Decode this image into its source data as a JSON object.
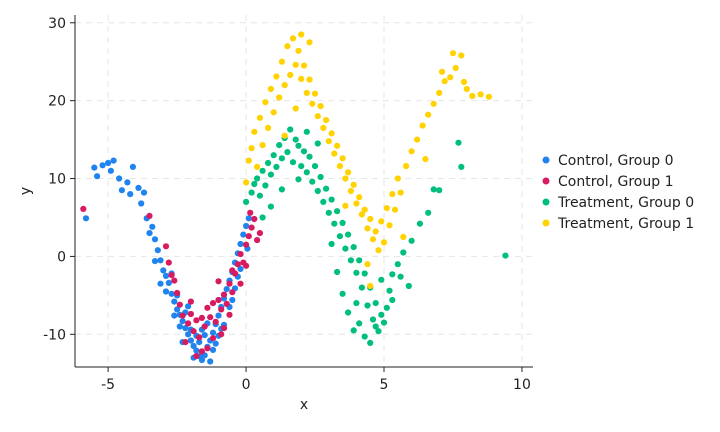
{
  "chart_data": {
    "type": "scatter",
    "xlabel": "x",
    "ylabel": "y",
    "xlim": [
      -6.2,
      10.4
    ],
    "ylim": [
      -14.2,
      31
    ],
    "xticks": [
      -5,
      0,
      5,
      10
    ],
    "yticks": [
      -10,
      0,
      10,
      20,
      30
    ],
    "grid": true,
    "legend_position": "right",
    "series": [
      {
        "name": "Control, Group 0",
        "color": "#1f83f0",
        "points": [
          [
            -5.8,
            4.9
          ],
          [
            -5.4,
            10.3
          ],
          [
            -5.5,
            11.4
          ],
          [
            -5.2,
            11.7
          ],
          [
            -5.0,
            12.0
          ],
          [
            -4.8,
            12.3
          ],
          [
            -4.9,
            11.0
          ],
          [
            -4.6,
            10.0
          ],
          [
            -4.5,
            8.5
          ],
          [
            -4.3,
            9.5
          ],
          [
            -4.1,
            11.5
          ],
          [
            -4.2,
            8.0
          ],
          [
            -3.9,
            8.8
          ],
          [
            -3.8,
            6.8
          ],
          [
            -3.7,
            8.2
          ],
          [
            -3.6,
            4.9
          ],
          [
            -3.4,
            3.8
          ],
          [
            -3.5,
            3.0
          ],
          [
            -3.3,
            2.2
          ],
          [
            -3.2,
            0.8
          ],
          [
            -3.1,
            -0.5
          ],
          [
            -3.0,
            -1.8
          ],
          [
            -2.9,
            -2.5
          ],
          [
            -2.8,
            -3.4
          ],
          [
            -2.7,
            -4.8
          ],
          [
            -2.6,
            -5.8
          ],
          [
            -2.5,
            -6.8
          ],
          [
            -2.4,
            -7.5
          ],
          [
            -2.3,
            -8.3
          ],
          [
            -2.2,
            -9.2
          ],
          [
            -2.1,
            -10.0
          ],
          [
            -2.0,
            -10.8
          ],
          [
            -1.9,
            -11.5
          ],
          [
            -1.8,
            -12.1
          ],
          [
            -1.7,
            -12.8
          ],
          [
            -1.6,
            -13.3
          ],
          [
            -1.5,
            -12.7
          ],
          [
            -1.4,
            -11.6
          ],
          [
            -1.3,
            -10.8
          ],
          [
            -1.2,
            -9.8
          ],
          [
            -1.1,
            -8.7
          ],
          [
            -1.0,
            -7.6
          ],
          [
            -0.9,
            -6.5
          ],
          [
            -0.8,
            -5.4
          ],
          [
            -0.7,
            -4.2
          ],
          [
            -0.6,
            -3.1
          ],
          [
            -0.5,
            -2.0
          ],
          [
            -0.4,
            -0.8
          ],
          [
            -0.3,
            0.4
          ],
          [
            -0.2,
            1.6
          ],
          [
            -0.1,
            2.8
          ],
          [
            0.0,
            3.9
          ],
          [
            0.1,
            4.9
          ],
          [
            -2.6,
            -7.6
          ],
          [
            -2.4,
            -9.0
          ],
          [
            -2.2,
            -7.2
          ],
          [
            -2.0,
            -9.4
          ],
          [
            -1.8,
            -10.2
          ],
          [
            -1.6,
            -9.4
          ],
          [
            -1.4,
            -8.6
          ],
          [
            -1.2,
            -12.0
          ],
          [
            -1.0,
            -10.2
          ],
          [
            -0.8,
            -8.8
          ],
          [
            -0.6,
            -6.5
          ],
          [
            -0.4,
            -4.1
          ],
          [
            -0.2,
            -1.6
          ],
          [
            -2.9,
            -4.5
          ],
          [
            -3.1,
            -3.5
          ],
          [
            -2.5,
            -5.0
          ],
          [
            -2.3,
            -11.0
          ],
          [
            -1.7,
            -11.0
          ],
          [
            -1.5,
            -10.1
          ],
          [
            -1.1,
            -11.2
          ],
          [
            -0.9,
            -9.3
          ],
          [
            -0.5,
            -5.6
          ],
          [
            -0.3,
            -2.6
          ],
          [
            0.05,
            1.0
          ],
          [
            -3.3,
            -0.6
          ],
          [
            -2.7,
            -2.2
          ],
          [
            -2.1,
            -6.4
          ],
          [
            -1.9,
            -13.0
          ],
          [
            -1.3,
            -13.5
          ]
        ]
      },
      {
        "name": "Control, Group 1",
        "color": "#d81b60",
        "points": [
          [
            -5.9,
            6.1
          ],
          [
            -3.5,
            5.2
          ],
          [
            -2.9,
            1.3
          ],
          [
            -2.7,
            -2.4
          ],
          [
            -2.5,
            -4.7
          ],
          [
            -2.4,
            -6.2
          ],
          [
            -2.3,
            -7.6
          ],
          [
            -2.1,
            -8.6
          ],
          [
            -2.0,
            -7.4
          ],
          [
            -1.9,
            -9.6
          ],
          [
            -1.8,
            -8.2
          ],
          [
            -1.7,
            -10.4
          ],
          [
            -1.6,
            -7.9
          ],
          [
            -1.5,
            -9.0
          ],
          [
            -1.4,
            -11.8
          ],
          [
            -1.3,
            -7.8
          ],
          [
            -1.2,
            -6.0
          ],
          [
            -1.1,
            -8.4
          ],
          [
            -1.0,
            -5.6
          ],
          [
            -0.9,
            -6.8
          ],
          [
            -0.8,
            -4.9
          ],
          [
            -0.7,
            -6.1
          ],
          [
            -0.6,
            -3.5
          ],
          [
            -0.5,
            -4.6
          ],
          [
            -0.4,
            -2.2
          ],
          [
            -0.3,
            -1.0
          ],
          [
            -0.2,
            0.3
          ],
          [
            -0.1,
            -0.8
          ],
          [
            0.0,
            1.5
          ],
          [
            0.1,
            2.6
          ],
          [
            0.2,
            3.7
          ],
          [
            0.3,
            4.8
          ],
          [
            0.4,
            2.1
          ],
          [
            0.5,
            3.0
          ],
          [
            0.15,
            5.6
          ],
          [
            -2.2,
            -11.0
          ],
          [
            -1.6,
            -12.2
          ],
          [
            -1.2,
            -10.5
          ],
          [
            -0.8,
            -9.2
          ],
          [
            -0.6,
            -7.5
          ],
          [
            -0.2,
            -3.5
          ],
          [
            0.0,
            -1.2
          ],
          [
            -2.6,
            -3.1
          ],
          [
            -2.0,
            -5.8
          ],
          [
            -1.4,
            -6.6
          ],
          [
            -1.0,
            -3.2
          ],
          [
            -0.5,
            -1.8
          ],
          [
            -0.9,
            -10.0
          ],
          [
            -1.8,
            -12.8
          ],
          [
            -2.8,
            -0.8
          ]
        ]
      },
      {
        "name": "Treatment, Group 0",
        "color": "#00bf7d",
        "points": [
          [
            0.0,
            7.0
          ],
          [
            0.2,
            8.2
          ],
          [
            0.3,
            9.3
          ],
          [
            0.4,
            10.0
          ],
          [
            0.5,
            7.8
          ],
          [
            0.6,
            11.0
          ],
          [
            0.7,
            9.1
          ],
          [
            0.8,
            12.0
          ],
          [
            0.9,
            10.5
          ],
          [
            1.0,
            13.0
          ],
          [
            1.1,
            11.5
          ],
          [
            1.2,
            14.3
          ],
          [
            1.3,
            12.6
          ],
          [
            1.4,
            15.2
          ],
          [
            1.5,
            13.4
          ],
          [
            1.6,
            16.3
          ],
          [
            1.7,
            12.1
          ],
          [
            1.8,
            15.0
          ],
          [
            1.9,
            14.2
          ],
          [
            2.0,
            11.6
          ],
          [
            2.1,
            13.5
          ],
          [
            2.2,
            10.8
          ],
          [
            2.3,
            12.8
          ],
          [
            2.4,
            9.6
          ],
          [
            2.5,
            11.6
          ],
          [
            2.6,
            8.4
          ],
          [
            2.7,
            10.2
          ],
          [
            2.8,
            7.0
          ],
          [
            2.9,
            8.7
          ],
          [
            3.0,
            5.6
          ],
          [
            3.1,
            7.3
          ],
          [
            3.2,
            4.2
          ],
          [
            3.3,
            5.8
          ],
          [
            3.4,
            2.6
          ],
          [
            3.5,
            4.3
          ],
          [
            3.6,
            1.0
          ],
          [
            3.7,
            2.8
          ],
          [
            3.8,
            -0.5
          ],
          [
            3.9,
            1.2
          ],
          [
            4.0,
            -2.1
          ],
          [
            4.1,
            -0.5
          ],
          [
            4.2,
            -4.0
          ],
          [
            4.3,
            -2.2
          ],
          [
            4.4,
            -6.3
          ],
          [
            4.5,
            -4.0
          ],
          [
            4.6,
            -8.1
          ],
          [
            4.7,
            -6.0
          ],
          [
            4.8,
            -9.6
          ],
          [
            4.9,
            -7.5
          ],
          [
            5.0,
            -8.5
          ],
          [
            5.1,
            -6.6
          ],
          [
            5.2,
            -4.4
          ],
          [
            5.3,
            -2.3
          ],
          [
            5.5,
            -1.0
          ],
          [
            5.7,
            0.5
          ],
          [
            6.0,
            2.0
          ],
          [
            6.3,
            4.2
          ],
          [
            6.6,
            5.6
          ],
          [
            6.8,
            8.6
          ],
          [
            7.0,
            8.5
          ],
          [
            7.7,
            14.6
          ],
          [
            7.8,
            11.5
          ],
          [
            9.4,
            0.1
          ],
          [
            3.9,
            -9.5
          ],
          [
            4.1,
            -8.6
          ],
          [
            4.3,
            -10.3
          ],
          [
            4.5,
            -11.1
          ],
          [
            4.7,
            -9.0
          ],
          [
            3.7,
            -7.2
          ],
          [
            3.5,
            -4.8
          ],
          [
            3.3,
            -2.0
          ],
          [
            4.9,
            -3.0
          ],
          [
            5.3,
            -5.6
          ],
          [
            5.6,
            -2.6
          ],
          [
            0.9,
            6.4
          ],
          [
            1.3,
            8.6
          ],
          [
            1.9,
            9.9
          ],
          [
            2.2,
            16.0
          ],
          [
            2.6,
            14.5
          ],
          [
            0.6,
            5.0
          ],
          [
            3.1,
            1.6
          ],
          [
            4.0,
            -6.0
          ],
          [
            5.9,
            -3.8
          ]
        ]
      },
      {
        "name": "Treatment, Group 1",
        "color": "#ffd200",
        "points": [
          [
            0.1,
            12.3
          ],
          [
            0.3,
            16.0
          ],
          [
            0.5,
            17.8
          ],
          [
            0.6,
            14.3
          ],
          [
            0.7,
            19.8
          ],
          [
            0.8,
            16.5
          ],
          [
            0.9,
            21.5
          ],
          [
            1.0,
            18.5
          ],
          [
            1.1,
            23.1
          ],
          [
            1.2,
            20.4
          ],
          [
            1.3,
            25.0
          ],
          [
            1.4,
            22.0
          ],
          [
            1.5,
            27.0
          ],
          [
            1.6,
            23.3
          ],
          [
            1.7,
            28.0
          ],
          [
            1.8,
            24.6
          ],
          [
            1.9,
            26.4
          ],
          [
            2.0,
            22.8
          ],
          [
            2.1,
            24.5
          ],
          [
            2.2,
            21.0
          ],
          [
            2.3,
            22.7
          ],
          [
            2.4,
            19.6
          ],
          [
            2.5,
            20.9
          ],
          [
            2.6,
            18.0
          ],
          [
            2.7,
            19.3
          ],
          [
            2.8,
            16.5
          ],
          [
            2.9,
            17.5
          ],
          [
            3.0,
            14.8
          ],
          [
            3.1,
            15.8
          ],
          [
            3.2,
            13.2
          ],
          [
            3.3,
            14.2
          ],
          [
            3.4,
            11.6
          ],
          [
            3.5,
            12.6
          ],
          [
            3.6,
            10.0
          ],
          [
            3.7,
            10.8
          ],
          [
            3.8,
            8.4
          ],
          [
            3.9,
            9.2
          ],
          [
            4.0,
            6.8
          ],
          [
            4.1,
            7.6
          ],
          [
            4.2,
            5.4
          ],
          [
            4.3,
            6.0
          ],
          [
            4.4,
            3.6
          ],
          [
            4.5,
            4.8
          ],
          [
            4.6,
            2.2
          ],
          [
            4.7,
            3.2
          ],
          [
            4.8,
            0.8
          ],
          [
            4.9,
            4.5
          ],
          [
            5.0,
            1.8
          ],
          [
            5.1,
            6.2
          ],
          [
            5.2,
            4.0
          ],
          [
            5.3,
            8.0
          ],
          [
            5.4,
            6.0
          ],
          [
            5.5,
            10.0
          ],
          [
            5.6,
            8.2
          ],
          [
            5.8,
            11.6
          ],
          [
            6.0,
            13.5
          ],
          [
            6.2,
            15.0
          ],
          [
            6.4,
            16.8
          ],
          [
            6.6,
            18.2
          ],
          [
            6.8,
            19.6
          ],
          [
            7.0,
            21.0
          ],
          [
            7.2,
            22.5
          ],
          [
            7.4,
            23.0
          ],
          [
            7.6,
            24.2
          ],
          [
            7.8,
            25.8
          ],
          [
            8.0,
            21.5
          ],
          [
            8.2,
            20.6
          ],
          [
            8.5,
            20.8
          ],
          [
            8.8,
            20.5
          ],
          [
            7.1,
            23.7
          ],
          [
            7.5,
            26.1
          ],
          [
            7.9,
            22.4
          ],
          [
            0.2,
            13.9
          ],
          [
            0.4,
            11.5
          ],
          [
            0.0,
            9.5
          ],
          [
            1.4,
            15.5
          ],
          [
            1.8,
            19.0
          ],
          [
            2.3,
            27.5
          ],
          [
            2.0,
            28.5
          ],
          [
            3.6,
            6.5
          ],
          [
            4.4,
            -1.0
          ],
          [
            5.7,
            2.5
          ],
          [
            6.5,
            12.5
          ],
          [
            4.5,
            -3.8
          ]
        ]
      }
    ]
  }
}
